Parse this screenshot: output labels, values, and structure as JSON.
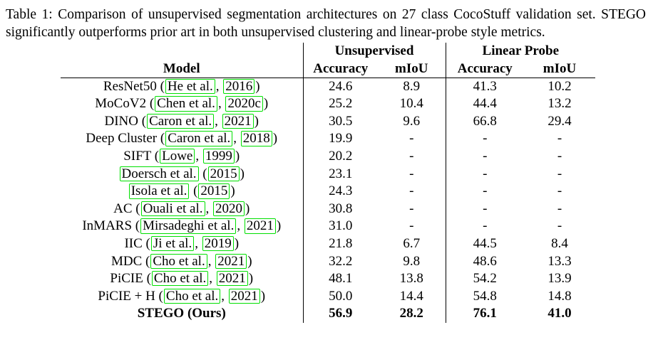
{
  "caption": {
    "text": "Table 1: Comparison of unsupervised segmentation architectures on 27 class CocoStuff validation set. STEGO significantly outperforms prior art in both unsupervised clustering and linear-probe style metrics."
  },
  "colors": {
    "citation_box_green": "#00e000",
    "rule_black": "#000000",
    "page_background": "#ffffff"
  },
  "table": {
    "group_headers": {
      "unsupervised": "Unsupervised",
      "linear_probe": "Linear Probe"
    },
    "column_headers": {
      "model": "Model",
      "unsup_accuracy": "Accuracy",
      "unsup_miou": "mIoU",
      "lp_accuracy": "Accuracy",
      "lp_miou": "mIoU"
    },
    "rows": [
      {
        "model_parts": [
          {
            "text": "ResNet50 (",
            "boxed": false
          },
          {
            "text": "He et al.",
            "boxed": true
          },
          {
            "text": ", ",
            "boxed": false
          },
          {
            "text": "2016",
            "boxed": true
          },
          {
            "text": ")",
            "boxed": false
          }
        ],
        "values": [
          "24.6",
          "8.9",
          "41.3",
          "10.2"
        ],
        "bold": false
      },
      {
        "model_parts": [
          {
            "text": "MoCoV2 (",
            "boxed": false
          },
          {
            "text": "Chen et al.",
            "boxed": true
          },
          {
            "text": ", ",
            "boxed": false
          },
          {
            "text": "2020c",
            "boxed": true
          },
          {
            "text": ")",
            "boxed": false
          }
        ],
        "values": [
          "25.2",
          "10.4",
          "44.4",
          "13.2"
        ],
        "bold": false
      },
      {
        "model_parts": [
          {
            "text": "DINO (",
            "boxed": false
          },
          {
            "text": "Caron et al.",
            "boxed": true
          },
          {
            "text": ", ",
            "boxed": false
          },
          {
            "text": "2021",
            "boxed": true
          },
          {
            "text": ")",
            "boxed": false
          }
        ],
        "values": [
          "30.5",
          "9.6",
          "66.8",
          "29.4"
        ],
        "bold": false
      },
      {
        "model_parts": [
          {
            "text": "Deep Cluster (",
            "boxed": false
          },
          {
            "text": "Caron et al.",
            "boxed": true
          },
          {
            "text": ", ",
            "boxed": false
          },
          {
            "text": "2018",
            "boxed": true
          },
          {
            "text": ")",
            "boxed": false
          }
        ],
        "values": [
          "19.9",
          "-",
          "-",
          "-"
        ],
        "bold": false
      },
      {
        "model_parts": [
          {
            "text": "SIFT (",
            "boxed": false
          },
          {
            "text": "Lowe",
            "boxed": true
          },
          {
            "text": ", ",
            "boxed": false
          },
          {
            "text": "1999",
            "boxed": true
          },
          {
            "text": ")",
            "boxed": false
          }
        ],
        "values": [
          "20.2",
          "-",
          "-",
          "-"
        ],
        "bold": false
      },
      {
        "model_parts": [
          {
            "text": "Doersch et al.",
            "boxed": true
          },
          {
            "text": " (",
            "boxed": false
          },
          {
            "text": "2015",
            "boxed": true
          },
          {
            "text": ")",
            "boxed": false
          }
        ],
        "values": [
          "23.1",
          "-",
          "-",
          "-"
        ],
        "bold": false
      },
      {
        "model_parts": [
          {
            "text": "Isola et al.",
            "boxed": true
          },
          {
            "text": " (",
            "boxed": false
          },
          {
            "text": "2015",
            "boxed": true
          },
          {
            "text": ")",
            "boxed": false
          }
        ],
        "values": [
          "24.3",
          "-",
          "-",
          "-"
        ],
        "bold": false
      },
      {
        "model_parts": [
          {
            "text": "AC (",
            "boxed": false
          },
          {
            "text": "Ouali et al.",
            "boxed": true
          },
          {
            "text": ", ",
            "boxed": false
          },
          {
            "text": "2020",
            "boxed": true
          },
          {
            "text": ")",
            "boxed": false
          }
        ],
        "values": [
          "30.8",
          "-",
          "-",
          "-"
        ],
        "bold": false
      },
      {
        "model_parts": [
          {
            "text": "InMARS (",
            "boxed": false
          },
          {
            "text": "Mirsadeghi et al.",
            "boxed": true
          },
          {
            "text": ", ",
            "boxed": false
          },
          {
            "text": "2021",
            "boxed": true
          },
          {
            "text": ")",
            "boxed": false
          }
        ],
        "values": [
          "31.0",
          "-",
          "-",
          "-"
        ],
        "bold": false
      },
      {
        "model_parts": [
          {
            "text": "IIC (",
            "boxed": false
          },
          {
            "text": "Ji et al.",
            "boxed": true
          },
          {
            "text": ", ",
            "boxed": false
          },
          {
            "text": "2019",
            "boxed": true
          },
          {
            "text": ")",
            "boxed": false
          }
        ],
        "values": [
          "21.8",
          "6.7",
          "44.5",
          "8.4"
        ],
        "bold": false
      },
      {
        "model_parts": [
          {
            "text": "MDC (",
            "boxed": false
          },
          {
            "text": "Cho et al.",
            "boxed": true
          },
          {
            "text": ", ",
            "boxed": false
          },
          {
            "text": "2021",
            "boxed": true
          },
          {
            "text": ")",
            "boxed": false
          }
        ],
        "values": [
          "32.2",
          "9.8",
          "48.6",
          "13.3"
        ],
        "bold": false
      },
      {
        "model_parts": [
          {
            "text": "PiCIE (",
            "boxed": false
          },
          {
            "text": "Cho et al.",
            "boxed": true
          },
          {
            "text": ", ",
            "boxed": false
          },
          {
            "text": "2021",
            "boxed": true
          },
          {
            "text": ")",
            "boxed": false
          }
        ],
        "values": [
          "48.1",
          "13.8",
          "54.2",
          "13.9"
        ],
        "bold": false
      },
      {
        "model_parts": [
          {
            "text": "PiCIE + H (",
            "boxed": false
          },
          {
            "text": "Cho et al.",
            "boxed": true
          },
          {
            "text": ", ",
            "boxed": false
          },
          {
            "text": "2021",
            "boxed": true
          },
          {
            "text": ")",
            "boxed": false
          }
        ],
        "values": [
          "50.0",
          "14.4",
          "54.8",
          "14.8"
        ],
        "bold": false
      },
      {
        "model_parts": [
          {
            "text": "STEGO (Ours)",
            "boxed": false
          }
        ],
        "values": [
          "56.9",
          "28.2",
          "76.1",
          "41.0"
        ],
        "bold": true
      }
    ]
  }
}
